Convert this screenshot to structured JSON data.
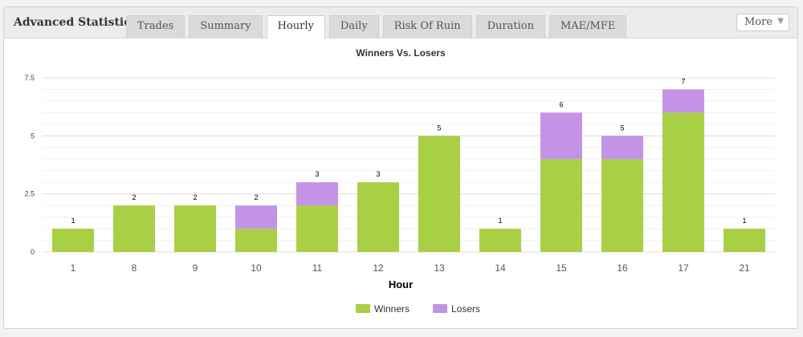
{
  "panel": {
    "title": "Advanced Statistics"
  },
  "tabs": [
    {
      "label": "Trades",
      "active": false
    },
    {
      "label": "Summary",
      "active": false
    },
    {
      "label": "Hourly",
      "active": true
    },
    {
      "label": "Daily",
      "active": false
    },
    {
      "label": "Risk Of Ruin",
      "active": false
    },
    {
      "label": "Duration",
      "active": false
    },
    {
      "label": "MAE/MFE",
      "active": false
    }
  ],
  "more": {
    "label": "More",
    "icon": "triangle-down-icon"
  },
  "chart_data": {
    "type": "bar",
    "stacked": true,
    "title": "Winners Vs. Losers",
    "xlabel": "Hour",
    "ylabel": "",
    "ylim": [
      0,
      7.5
    ],
    "yticks": [
      "0",
      "2.5",
      "5",
      "7.5"
    ],
    "categories": [
      "1",
      "8",
      "9",
      "10",
      "11",
      "12",
      "13",
      "14",
      "15",
      "16",
      "17",
      "21"
    ],
    "series": [
      {
        "name": "Winners",
        "color": "#a9cf45",
        "values": [
          1,
          2,
          2,
          1,
          2,
          3,
          5,
          1,
          4,
          4,
          6,
          1
        ]
      },
      {
        "name": "Losers",
        "color": "#c493e6",
        "values": [
          0,
          0,
          0,
          1,
          1,
          0,
          0,
          0,
          2,
          1,
          1,
          0
        ]
      }
    ],
    "totals": [
      "1",
      "2",
      "2",
      "2",
      "3",
      "3",
      "5",
      "1",
      "6",
      "5",
      "7",
      "1"
    ],
    "grid": true,
    "legend": "bottom-center"
  }
}
